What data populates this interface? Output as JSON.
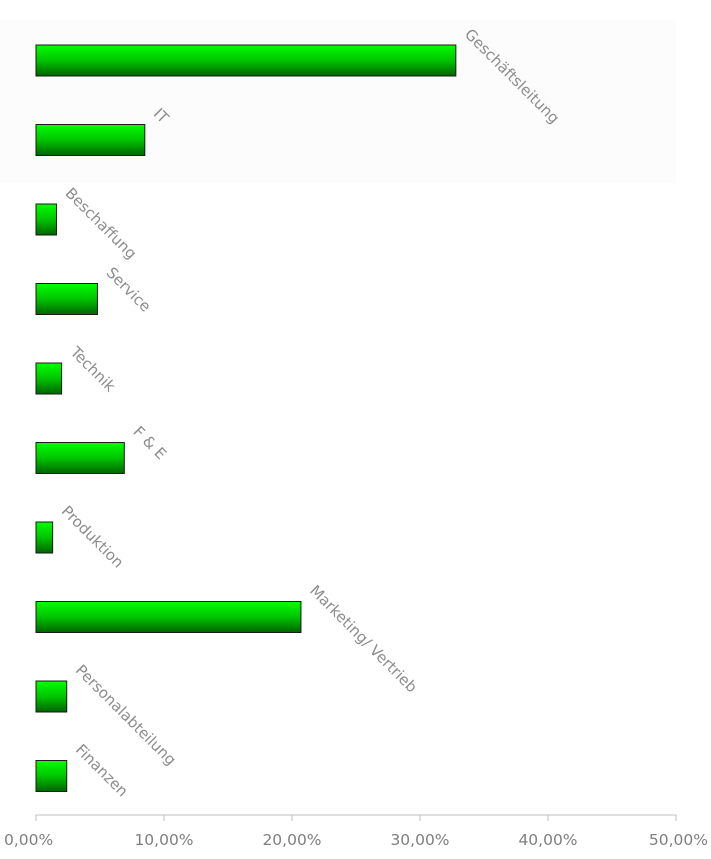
{
  "chart_data": {
    "type": "bar",
    "orientation": "horizontal",
    "categories": [
      "Geschäftsleitung",
      "IT",
      "Beschaffung",
      "Service",
      "Technik",
      "F & E",
      "Produktion",
      "Marketing/ Vertrieb",
      "Personalabteilung",
      "Finanzen"
    ],
    "values": [
      32.8,
      8.5,
      1.6,
      4.8,
      2.0,
      6.9,
      1.3,
      20.7,
      2.4,
      2.4
    ],
    "x_ticks": [
      "0,00%",
      "10,00%",
      "20,00%",
      "30,00%",
      "40,00%",
      "50,00%"
    ],
    "xlim": [
      0,
      50
    ],
    "title": "",
    "xlabel": "",
    "ylabel": "",
    "grid": false,
    "legend": "none",
    "colors": {
      "bar_light": "#00ff00",
      "bar_mid": "#00c400",
      "bar_dark": "#006400",
      "bar_stroke": "#1a1a1a",
      "label": "#8c8c8c",
      "tick_label": "#7f7f7f",
      "axis": "#bfbfbf",
      "plot_background": "#fcfcfc"
    }
  }
}
